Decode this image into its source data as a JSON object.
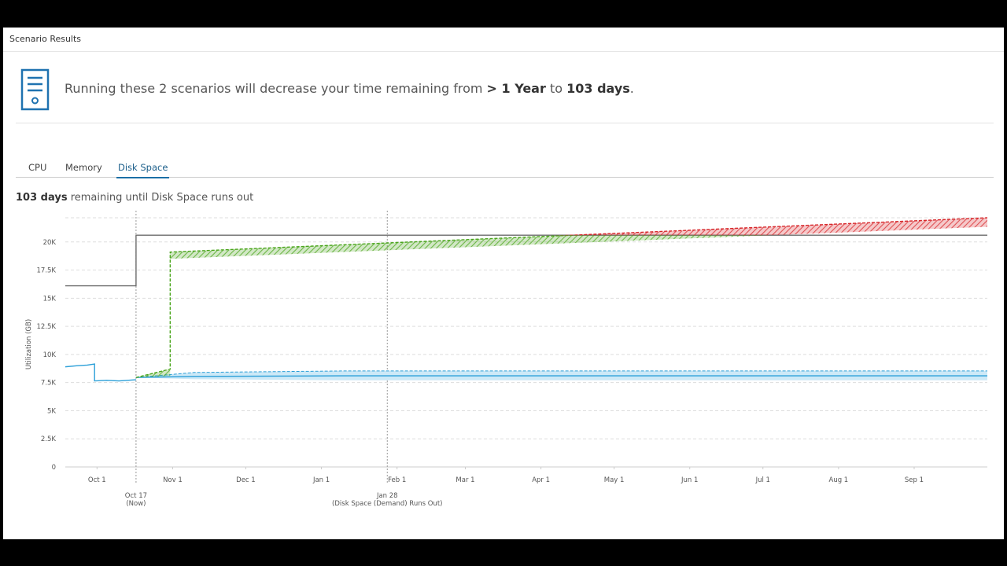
{
  "header": {
    "title": "Scenario Results"
  },
  "summary": {
    "parts": [
      {
        "text": "Running these 2 scenarios will decrease your time remaining from ",
        "bold": false
      },
      {
        "text": "> 1 Year",
        "bold": true
      },
      {
        "text": " to ",
        "bold": false
      },
      {
        "text": "103 days",
        "bold": true
      },
      {
        "text": ".",
        "bold": false
      }
    ]
  },
  "tabs": {
    "items": [
      "CPU",
      "Memory",
      "Disk Space"
    ],
    "active": 2
  },
  "status": {
    "parts": [
      {
        "text": "103 days",
        "bold": true
      },
      {
        "text": " remaining until Disk Space runs out",
        "bold": false
      }
    ]
  },
  "chart": {
    "type": "line",
    "y_label": "Utilization (GB)",
    "xlim": [
      -13,
      365
    ],
    "xticks": [
      {
        "value": 0,
        "label": "Oct 1"
      },
      {
        "value": 31,
        "label": "Nov 1"
      },
      {
        "value": 61,
        "label": "Dec 1"
      },
      {
        "value": 92,
        "label": "Jan 1"
      },
      {
        "value": 123,
        "label": "Feb 1"
      },
      {
        "value": 151,
        "label": "Mar 1"
      },
      {
        "value": 182,
        "label": "Apr 1"
      },
      {
        "value": 212,
        "label": "May 1"
      },
      {
        "value": 243,
        "label": "Jun 1"
      },
      {
        "value": 273,
        "label": "Jul 1"
      },
      {
        "value": 304,
        "label": "Aug 1"
      },
      {
        "value": 335,
        "label": "Sep 1"
      }
    ],
    "ylim": [
      0,
      22500
    ],
    "yticks": [
      0,
      {
        "value": 2500,
        "label": "2.5K"
      },
      {
        "value": 5000,
        "label": "5K"
      },
      {
        "value": 7500,
        "label": "7.5K"
      },
      {
        "value": 10000,
        "label": "10K"
      },
      {
        "value": 12500,
        "label": "12.5K"
      },
      {
        "value": 15000,
        "label": "15K"
      },
      {
        "value": 17500,
        "label": "17.5K"
      },
      {
        "value": 20000,
        "label": "20K"
      }
    ],
    "grid": true,
    "markers": [
      {
        "x": 16,
        "label": [
          "Oct 17",
          "(Now)"
        ]
      },
      {
        "x": 119,
        "label": [
          "Jan 28",
          "(Disk Space (Demand) Runs Out)"
        ]
      }
    ],
    "series": [
      {
        "color": "#6b6b6b",
        "x": [
          -13,
          16,
          16,
          365
        ],
        "values": [
          16100,
          16100,
          20600,
          20600
        ]
      },
      {
        "color": "#2b9fd8",
        "x": [
          -13,
          -8,
          -4,
          -1,
          -1,
          4,
          9,
          16
        ],
        "values": [
          8900,
          9000,
          9050,
          9150,
          7650,
          7700,
          7650,
          7750
        ]
      },
      {
        "color": "#2b9fd8",
        "fill": "#cde9f7",
        "x": [
          16,
          40,
          100,
          365
        ],
        "values": [
          7950,
          8050,
          8100,
          8100
        ],
        "upper": [
          7950,
          8400,
          8530,
          8530
        ],
        "lower": [
          7950,
          7800,
          7700,
          7700
        ]
      },
      {
        "color": "#4aa51c",
        "over_color": "#d7262a",
        "hatch": true,
        "dash": true,
        "x": [
          16,
          30,
          30,
          365
        ],
        "values": [
          7950,
          8700,
          19100,
          22150
        ],
        "lower": [
          7950,
          8100,
          18500,
          21350
        ]
      }
    ]
  }
}
